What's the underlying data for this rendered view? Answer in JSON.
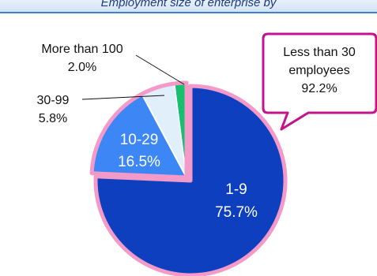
{
  "header": {
    "title": "Employment size of enterprise by"
  },
  "chart_data": {
    "type": "pie",
    "slices": [
      {
        "label": "1-9",
        "percent": "75.7%",
        "value": 75.7,
        "color": "#0d3fbf"
      },
      {
        "label": "10-29",
        "percent": "16.5%",
        "value": 16.5,
        "color": "#3c87f5"
      },
      {
        "label": "30-99",
        "percent": "5.8%",
        "value": 5.8,
        "color": "#e0effa"
      },
      {
        "label": "More than 100",
        "percent": "2.0%",
        "value": 2.0,
        "color": "#17c06e"
      }
    ],
    "exploded_group_border": "#f49ac8",
    "callout": {
      "lines": [
        "Less than 30",
        "employees",
        "92.2%"
      ],
      "border_color": "#c4138c"
    }
  }
}
